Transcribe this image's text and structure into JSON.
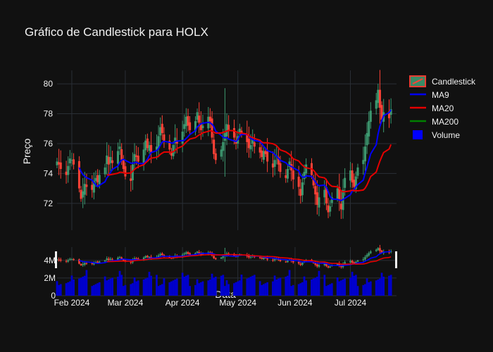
{
  "chart_data": {
    "type": "candlestick",
    "title": "Gráfico de Candlestick para HOLX",
    "xlabel": "Data",
    "ylabel": "Preço",
    "ylim": [
      70.2,
      80.9
    ],
    "volume_ylim": [
      0,
      5500000
    ],
    "x_tick_labels": [
      "Feb 2024",
      "Mar 2024",
      "Apr 2024",
      "May 2024",
      "Jun 2024",
      "Jul 2024"
    ],
    "y_tick_values": [
      72,
      74,
      76,
      78,
      80
    ],
    "y_tick_labels": [
      "72",
      "74",
      "76",
      "78",
      "80"
    ],
    "volume_tick_values": [
      0,
      2000000,
      4000000
    ],
    "volume_tick_labels": [
      "0",
      "2M",
      "4M"
    ],
    "legend": [
      "Candlestick",
      "MA9",
      "MA20",
      "MA200",
      "Volume"
    ],
    "legend_placement": "top-right",
    "colors": {
      "up": "#3d9970",
      "down": "#ff4136",
      "ma9": "#0000ff",
      "ma20": "#e60000",
      "ma200": "#008000",
      "volume": "#0000cc",
      "background": "#111111",
      "grid": "#2a2f36"
    },
    "start_date": "2024-01-24",
    "end_date": "2024-07-26",
    "close_series": [
      74.8,
      74.6,
      74.3,
      73.9,
      74.5,
      75.0,
      74.9,
      74.6,
      73.0,
      72.3,
      72.8,
      73.3,
      73.1,
      72.9,
      73.5,
      73.7,
      73.4,
      73.9,
      74.4,
      75.2,
      74.6,
      75.1,
      74.7,
      75.5,
      75.8,
      74.9,
      74.3,
      73.8,
      73.5,
      74.6,
      75.3,
      75.1,
      74.8,
      75.6,
      76.2,
      75.7,
      75.9,
      75.4,
      75.8,
      76.5,
      77.1,
      76.7,
      76.1,
      75.6,
      75.2,
      75.9,
      76.4,
      76.0,
      76.8,
      77.3,
      77.8,
      77.2,
      76.9,
      77.5,
      78.1,
      77.4,
      76.9,
      77.2,
      77.8,
      77.5,
      76.4,
      75.3,
      74.9,
      75.6,
      76.1,
      76.7,
      77.3,
      76.9,
      76.4,
      76.0,
      76.5,
      77.0,
      76.6,
      76.1,
      75.7,
      75.9,
      76.3,
      75.8,
      75.4,
      75.1,
      75.5,
      75.3,
      74.8,
      74.4,
      74.9,
      75.2,
      74.6,
      74.1,
      73.7,
      74.3,
      74.8,
      74.2,
      73.6,
      73.1,
      72.5,
      73.4,
      74.1,
      74.6,
      73.9,
      73.2,
      72.6,
      71.9,
      72.4,
      72.9,
      72.0,
      71.4,
      71.8,
      72.4,
      73.0,
      72.2,
      71.6,
      72.9,
      73.7,
      74.2,
      73.4,
      73.1,
      73.8,
      74.4,
      74.9,
      75.8,
      76.7,
      77.5,
      78.2,
      78.9,
      79.6,
      78.4,
      77.6,
      78.1,
      77.7,
      78.3
    ]
  }
}
